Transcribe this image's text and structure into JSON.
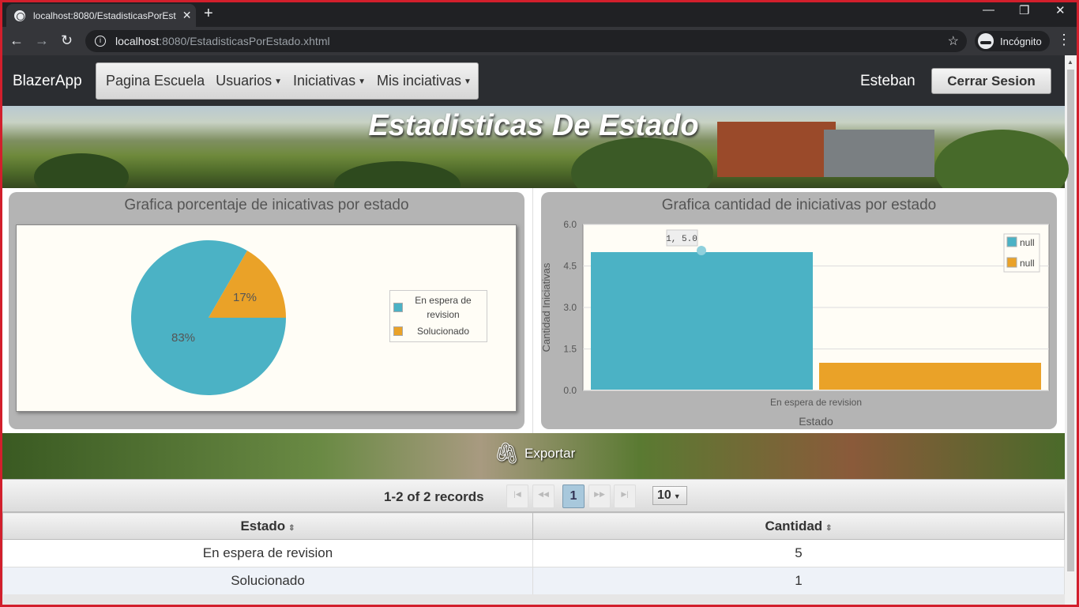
{
  "browser": {
    "tab_title": "localhost:8080/EstadisticasPorEst",
    "url_host": "localhost",
    "url_path": ":8080/EstadisticasPorEstado.xhtml",
    "incognito_label": "Incógnito"
  },
  "app": {
    "brand": "BlazerApp",
    "menu": [
      {
        "label": "Pagina Escuela",
        "dropdown": false
      },
      {
        "label": "Usuarios",
        "dropdown": true
      },
      {
        "label": "Iniciativas",
        "dropdown": true
      },
      {
        "label": "Mis inciativas",
        "dropdown": true
      }
    ],
    "user": "Esteban",
    "logout_label": "Cerrar Sesion"
  },
  "hero": {
    "title": "Estadisticas De Estado"
  },
  "chart_data": [
    {
      "type": "pie",
      "title": "Grafica porcentaje de inicativas por estado",
      "categories": [
        "En espera de revision",
        "Solucionado"
      ],
      "values": [
        5,
        1
      ],
      "labels": [
        "83%",
        "17%"
      ],
      "colors": [
        "#4bb2c5",
        "#eaa228"
      ],
      "legend": "right"
    },
    {
      "type": "bar",
      "title": "Grafica cantidad de iniciativas por estado",
      "categories": [
        "En espera de revision"
      ],
      "series": [
        {
          "name": "null",
          "values": [
            5
          ]
        },
        {
          "name": "null",
          "values": [
            1
          ]
        }
      ],
      "colors": [
        "#4bb2c5",
        "#eaa228"
      ],
      "xlabel": "Estado",
      "ylabel": "Cantidad Iniciativas",
      "ylim": [
        0,
        6
      ],
      "yticks": [
        "0.0",
        "1.5",
        "3.0",
        "4.5",
        "6.0"
      ],
      "tooltip": "1, 5.0",
      "grid": true,
      "legend": "top-right"
    }
  ],
  "export_label": "Exportar",
  "paginator": {
    "records": "1-2 of 2 records",
    "current_page": "1",
    "rows_per_page": "10"
  },
  "table": {
    "headers": [
      "Estado",
      "Cantidad"
    ],
    "rows": [
      [
        "En espera de revision",
        "5"
      ],
      [
        "Solucionado",
        "1"
      ]
    ]
  }
}
